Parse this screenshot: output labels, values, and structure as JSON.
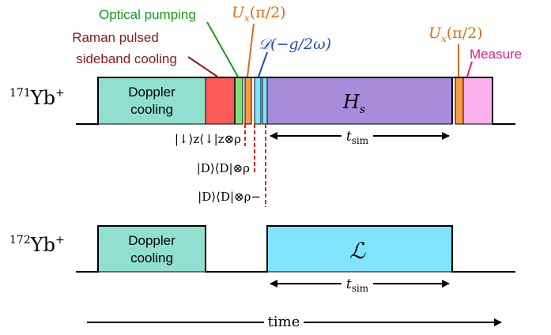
{
  "diagram": {
    "ion_171": {
      "label_sup": "171",
      "label_main": "Yb",
      "label_charge": "+"
    },
    "ion_172": {
      "label_sup": "172",
      "label_main": "Yb",
      "label_charge": "+"
    },
    "blocks": {
      "doppler_171": {
        "line1": "Doppler",
        "line2": "cooling",
        "color": "#8fe0cf"
      },
      "raman": {
        "color": "#ff5a5a"
      },
      "optical": {
        "color": "#7fe07a"
      },
      "hs": {
        "label": "H",
        "sub": "s",
        "color": "#a98bdc"
      },
      "ux2": {
        "color": "#ff9a40"
      },
      "measure": {
        "color": "#ffb0ee"
      },
      "doppler_172": {
        "line1": "Doppler",
        "line2": "cooling",
        "color": "#8fe0cf"
      },
      "lindblad": {
        "label": "ℒ",
        "color": "#80e4ff"
      }
    },
    "annotations": {
      "raman_line1": "Raman pulsed",
      "raman_line2": "sideband cooling",
      "raman_color": "#8b1a1a",
      "optical": "Optical pumping",
      "optical_color": "#1a9a1a",
      "ux1": "U",
      "ux1_sub": "x",
      "ux1_arg": "(π/2)",
      "ux_color": "#e06a10",
      "dg": "𝒟(−g/2ω)",
      "dg_color": "#1a4fc0",
      "ux2": "U",
      "ux2_sub": "x",
      "ux2_arg": "(π/2)",
      "measure": "Measure",
      "measure_color": "#e0208a"
    },
    "states": {
      "s1": "|↓⟩z⟨↓|z⊗ρ",
      "s2": "|D⟩⟨D|⊗ρ",
      "s3": "|D⟩⟨D|⊗ρ−"
    },
    "tsim": {
      "label": "t",
      "sub": "sim"
    },
    "time_label": "time"
  }
}
